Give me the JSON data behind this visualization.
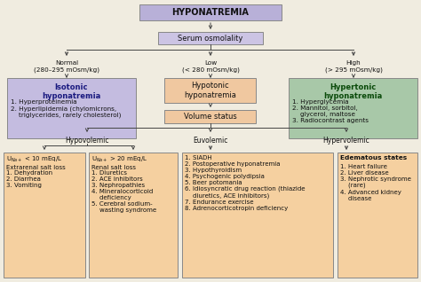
{
  "title": "HYPONATREMIA",
  "title_box_color": "#b8b0d8",
  "serum_box_color": "#ccc4e4",
  "serum_label": "Serum osmolality",
  "normal_label": "Normal\n(280–295 mOsm/kg)",
  "low_label": "Low\n(< 280 mOsm/kg)",
  "high_label": "High\n(> 295 mOsm/kg)",
  "isotonic_box_color": "#c4bce0",
  "isotonic_title": "Isotonic\nhyponatremia",
  "isotonic_text": "1. Hyperproteinemia\n2. Hyperlipidemia (chylomicrons,\n    triglycerides, rarely cholesterol)",
  "hypotonic_box_color": "#f0c8a0",
  "hypotonic_title": "Hypotonic\nhyponatremia",
  "hypertonic_box_color": "#a8c8a8",
  "hypertonic_title": "Hypertonic\nhyponatremia",
  "hypertonic_text": "1. Hyperglycemia\n2. Mannitol, sorbitol,\n    glycerol, maltose\n3. Radiocontrast agents",
  "volume_box_color": "#f0c8a0",
  "volume_label": "Volume status",
  "hypovolemic_label": "Hypovolemic",
  "euvolemic_label": "Euvolemic",
  "hypervolemic_label": "Hypervolemic",
  "una_low_box_color": "#f5d0a0",
  "una_low_title": "U$_{Na+}$ < 10 mEq/L\nExtrarenal salt loss",
  "una_low_text": "1. Dehydration\n2. Diarrhea\n3. Vomiting",
  "una_high_box_color": "#f5d0a0",
  "una_high_title": "U$_{Na+}$ > 20 mEq/L\nRenal salt loss",
  "una_high_text": "1. Diuretics\n2. ACE inhibitors\n3. Nephropathies\n4. Mineralocorticoid\n    deficiency\n5. Cerebral sodium-\n    wasting syndrome",
  "euvolemic_box_color": "#f5d0a0",
  "euvolemic_text": "1. SIADH\n2. Postoperative hyponatremia\n3. Hypothyroidism\n4. Psychogenic polydipsia\n5. Beer potomania\n6. Idiosyncratic drug reaction (thiazide\n    diuretics, ACE inhibitors)\n7. Endurance exercise\n8. Adrenocorticotropin deficiency",
  "hypervolemic_box_color": "#f5d0a0",
  "hypervolemic_title_line1": "Edematous states",
  "hypervolemic_text": "1. Heart failure\n2. Liver disease\n3. Nephrotic syndrome\n    (rare)\n4. Advanced kidney\n    disease",
  "bg_color": "#f0ece0",
  "line_color": "#444444",
  "text_color": "#111111",
  "bold_color_isotonic": "#1a1a80",
  "bold_color_hypertonic": "#0a4a0a"
}
